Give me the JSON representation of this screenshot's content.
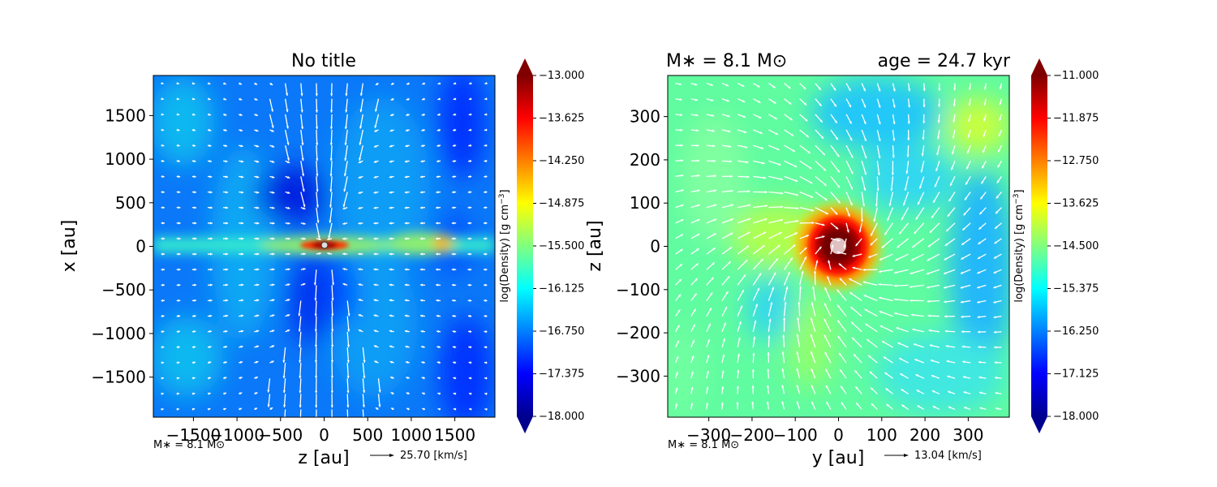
{
  "colormap_stops": [
    "#00008f",
    "#0000ff",
    "#0080ff",
    "#00ffff",
    "#80ff80",
    "#ffff00",
    "#ff8000",
    "#ff0000",
    "#800000"
  ],
  "chart_data": [
    {
      "type": "heatmap",
      "title": "No title",
      "title_left": "",
      "title_right": "",
      "xlabel": "z [au]",
      "ylabel": "x [au]",
      "xlim": [
        -1960,
        1960
      ],
      "ylim": [
        -1960,
        1960
      ],
      "xticks": [
        "−1500",
        "−1000",
        "−500",
        "0",
        "500",
        "1000",
        "1500"
      ],
      "xtick_values": [
        -1500,
        -1000,
        -500,
        0,
        500,
        1000,
        1500
      ],
      "yticks": [
        "1500",
        "1000",
        "500",
        "0",
        "−500",
        "−1000",
        "−1500"
      ],
      "ytick_values": [
        1500,
        1000,
        500,
        0,
        -500,
        -1000,
        -1500
      ],
      "field": "log(Density)",
      "colorbar_label": "log(Density) [g cm$^{-3}$]",
      "colorbar_range": [
        -18.0,
        -13.0
      ],
      "colorbar_ticks": [
        "−13.000",
        "−13.625",
        "−14.250",
        "−14.875",
        "−15.500",
        "−16.125",
        "−16.750",
        "−17.375",
        "−18.000"
      ],
      "colorbar_tick_values": [
        -13.0,
        -13.625,
        -14.25,
        -14.875,
        -15.5,
        -16.125,
        -16.75,
        -17.375,
        -18.0
      ],
      "mass_label": "M∗ = 8.1 M⊙",
      "vector_key": "25.70 [km/s]",
      "structure": "edge-on disk along x=0 with bipolar low-density outflow cavities and dense central star"
    },
    {
      "type": "heatmap",
      "title": "",
      "title_left": "M∗ = 8.1 M⊙",
      "title_right": "age = 24.7 kyr",
      "xlabel": "y [au]",
      "ylabel": "z [au]",
      "xlim": [
        -395,
        395
      ],
      "ylim": [
        -395,
        395
      ],
      "xticks": [
        "−300",
        "−200",
        "−100",
        "0",
        "100",
        "200",
        "300"
      ],
      "xtick_values": [
        -300,
        -200,
        -100,
        0,
        100,
        200,
        300
      ],
      "yticks": [
        "300",
        "200",
        "100",
        "0",
        "−100",
        "−200",
        "−300"
      ],
      "ytick_values": [
        300,
        200,
        100,
        0,
        -100,
        -200,
        -300
      ],
      "field": "log(Density)",
      "colorbar_label": "log(Density) [g cm$^{-3}$]",
      "colorbar_range": [
        -18.0,
        -11.0
      ],
      "colorbar_ticks": [
        "−11.000",
        "−11.875",
        "−12.750",
        "−13.625",
        "−14.500",
        "−15.375",
        "−16.250",
        "−17.125",
        "−18.000"
      ],
      "colorbar_tick_values": [
        -11.0,
        -11.875,
        -12.75,
        -13.625,
        -14.5,
        -15.375,
        -16.25,
        -17.125,
        -18.0
      ],
      "mass_label": "M∗ = 8.1 M⊙",
      "vector_key": "13.04 [km/s]",
      "structure": "face-on view with dense central disk (~100 au) and infalling velocity arrows"
    }
  ]
}
